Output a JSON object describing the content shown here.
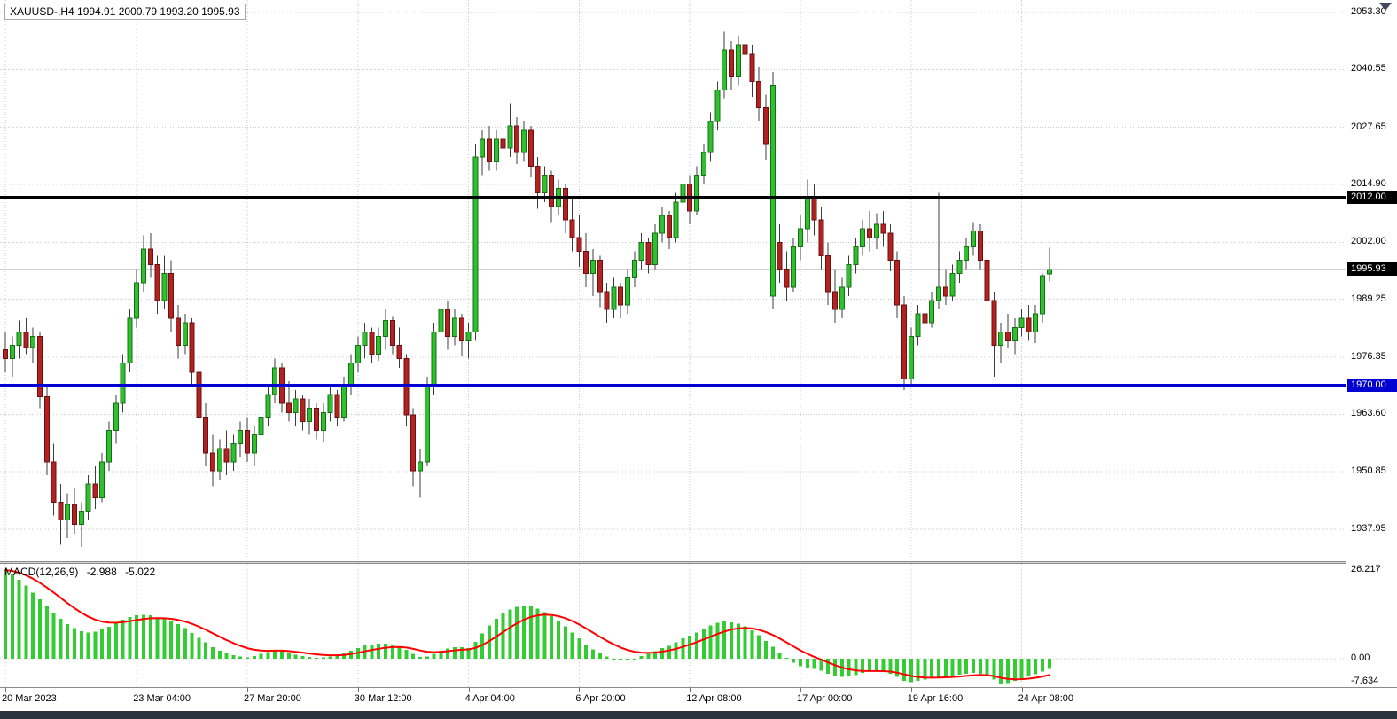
{
  "window": {
    "title": "XAUUSD-,H4",
    "symbol_header": "XAUUSD-,H4  1994.91 2000.79 1993.20 1995.93"
  },
  "macd_label": {
    "name": "MACD(12,26,9)",
    "main_value": "-2.988",
    "signal_value": "-5.022"
  },
  "chart_data": {
    "type": "candlestick",
    "symbol": "XAUUSD-",
    "timeframe": "H4",
    "last_ohlc": {
      "open": 1994.91,
      "high": 2000.79,
      "low": 1993.2,
      "close": 1995.93
    },
    "price_axis": {
      "gridline_values": [
        2053.3,
        2040.55,
        2027.65,
        2014.9,
        2002.0,
        1989.25,
        1976.35,
        1963.6,
        1950.85,
        1937.95
      ],
      "max_visible": 2056.07,
      "min_visible": 1930.8
    },
    "levels": [
      {
        "value": 2012.0,
        "label": "2012.00",
        "color": "#000000",
        "width": 3
      },
      {
        "value": 1970.0,
        "label": "1970.00",
        "color": "#0000D0",
        "width": 4
      }
    ],
    "current_price": {
      "value": 1995.93,
      "label": "1995.93"
    },
    "time_axis": [
      {
        "label": "20 Mar 2023",
        "index": 0
      },
      {
        "label": "23 Mar 04:00",
        "index": 19
      },
      {
        "label": "27 Mar 20:00",
        "index": 35
      },
      {
        "label": "30 Mar 12:00",
        "index": 51
      },
      {
        "label": "4 Apr 04:00",
        "index": 67
      },
      {
        "label": "6 Apr 20:00",
        "index": 83
      },
      {
        "label": "12 Apr 08:00",
        "index": 99
      },
      {
        "label": "17 Apr 00:00",
        "index": 115
      },
      {
        "label": "19 Apr 16:00",
        "index": 131
      },
      {
        "label": "24 Apr 08:00",
        "index": 147
      }
    ],
    "candles": [
      [
        1978,
        1982,
        1973,
        1976
      ],
      [
        1976,
        1981,
        1972,
        1979
      ],
      [
        1979,
        1984.5,
        1976,
        1982
      ],
      [
        1982,
        1985,
        1977,
        1978.5
      ],
      [
        1978.5,
        1983,
        1975,
        1981
      ],
      [
        1981,
        1982,
        1965,
        1967.5
      ],
      [
        1967.5,
        1970,
        1950,
        1953
      ],
      [
        1953,
        1957,
        1941,
        1944
      ],
      [
        1944,
        1948,
        1934.5,
        1940
      ],
      [
        1940,
        1946,
        1936,
        1943.5
      ],
      [
        1943.5,
        1947,
        1937,
        1939
      ],
      [
        1939,
        1944,
        1934,
        1942
      ],
      [
        1942,
        1950,
        1940,
        1948
      ],
      [
        1948,
        1952,
        1942.5,
        1945
      ],
      [
        1945,
        1955,
        1944,
        1953
      ],
      [
        1953,
        1962,
        1951,
        1960
      ],
      [
        1960,
        1968,
        1957,
        1966
      ],
      [
        1966,
        1977,
        1964,
        1975
      ],
      [
        1975,
        1987,
        1973,
        1985
      ],
      [
        1985,
        1996,
        1983,
        1993
      ],
      [
        1993,
        2003.5,
        1991,
        2000.5
      ],
      [
        2000.5,
        2004,
        1994,
        1997
      ],
      [
        1997,
        1999,
        1986,
        1989
      ],
      [
        1989,
        1999,
        1987,
        1995
      ],
      [
        1995,
        1998,
        1982,
        1985
      ],
      [
        1985,
        1988,
        1976,
        1979
      ],
      [
        1979,
        1986,
        1977,
        1984
      ],
      [
        1984,
        1985,
        1970,
        1973
      ],
      [
        1973,
        1974.5,
        1960,
        1963
      ],
      [
        1963,
        1966,
        1952,
        1955
      ],
      [
        1955,
        1959,
        1947.5,
        1951
      ],
      [
        1951,
        1958,
        1949,
        1956
      ],
      [
        1956,
        1960,
        1950,
        1953
      ],
      [
        1953,
        1959,
        1951,
        1957
      ],
      [
        1957,
        1962,
        1954,
        1960
      ],
      [
        1960,
        1963,
        1953,
        1955
      ],
      [
        1955,
        1961,
        1952,
        1959
      ],
      [
        1959,
        1965,
        1956,
        1963
      ],
      [
        1963,
        1970,
        1961,
        1968
      ],
      [
        1968,
        1976,
        1966,
        1974
      ],
      [
        1974,
        1975,
        1964,
        1966
      ],
      [
        1966,
        1971,
        1962,
        1964
      ],
      [
        1964,
        1969,
        1961,
        1967
      ],
      [
        1967,
        1968,
        1960,
        1962
      ],
      [
        1962,
        1967,
        1959,
        1965
      ],
      [
        1965,
        1966,
        1958,
        1960
      ],
      [
        1960,
        1966,
        1957.5,
        1964
      ],
      [
        1964,
        1970,
        1962,
        1968
      ],
      [
        1968,
        1969,
        1961,
        1963
      ],
      [
        1963,
        1972,
        1962,
        1970
      ],
      [
        1970,
        1977,
        1968,
        1975
      ],
      [
        1975,
        1981,
        1973,
        1979
      ],
      [
        1979,
        1984,
        1976,
        1982
      ],
      [
        1982,
        1983,
        1975,
        1977
      ],
      [
        1977,
        1983,
        1975.5,
        1981
      ],
      [
        1981,
        1987,
        1978,
        1984.5
      ],
      [
        1984.5,
        1985.5,
        1977,
        1979
      ],
      [
        1979,
        1983,
        1974,
        1976
      ],
      [
        1976,
        1977,
        1961,
        1963.5
      ],
      [
        1963.5,
        1965,
        1947.5,
        1951
      ],
      [
        1951,
        1956,
        1945,
        1953
      ],
      [
        1953,
        1972,
        1952,
        1970
      ],
      [
        1970,
        1984,
        1968,
        1982
      ],
      [
        1982,
        1990,
        1980,
        1987
      ],
      [
        1987,
        1989,
        1978,
        1981
      ],
      [
        1981,
        1987,
        1979,
        1985
      ],
      [
        1985,
        1986,
        1976.5,
        1980
      ],
      [
        1980,
        1984,
        1976,
        1982
      ],
      [
        1982,
        2024,
        1980,
        2021
      ],
      [
        2021,
        2027,
        2017,
        2025
      ],
      [
        2025,
        2028,
        2018,
        2020
      ],
      [
        2020,
        2027,
        2018,
        2025
      ],
      [
        2025,
        2030,
        2021,
        2023
      ],
      [
        2023,
        2033,
        2021,
        2028
      ],
      [
        2028,
        2030,
        2019.5,
        2022
      ],
      [
        2022,
        2029,
        2020,
        2027
      ],
      [
        2027,
        2028,
        2016.5,
        2019
      ],
      [
        2019,
        2021,
        2009.5,
        2013
      ],
      [
        2013,
        2019,
        2011,
        2017
      ],
      [
        2017,
        2018,
        2006.5,
        2010
      ],
      [
        2010,
        2016,
        2008,
        2014
      ],
      [
        2014,
        2015,
        2004,
        2007
      ],
      [
        2007,
        2012,
        2000,
        2003
      ],
      [
        2003,
        2008,
        1996.5,
        2000
      ],
      [
        2000,
        2004,
        1992,
        1995
      ],
      [
        1995,
        2000.5,
        1990,
        1998
      ],
      [
        1998,
        1999,
        1987.5,
        1991
      ],
      [
        1991,
        1993,
        1984,
        1987
      ],
      [
        1987,
        1994,
        1985,
        1992
      ],
      [
        1992,
        1993,
        1985,
        1988
      ],
      [
        1988,
        1996,
        1986,
        1994
      ],
      [
        1994,
        2000,
        1992,
        1998
      ],
      [
        1998,
        2004,
        1996,
        2002
      ],
      [
        2002,
        2003,
        1995,
        1997
      ],
      [
        1997,
        2006,
        1996,
        2004
      ],
      [
        2004,
        2010,
        2002,
        2008
      ],
      [
        2008,
        2009,
        2000.5,
        2003
      ],
      [
        2003,
        2013,
        2002,
        2011
      ],
      [
        2011,
        2028,
        2009,
        2015
      ],
      [
        2015,
        2017,
        2006,
        2009
      ],
      [
        2009,
        2019,
        2008,
        2017
      ],
      [
        2017,
        2024,
        2015,
        2022
      ],
      [
        2022,
        2031,
        2020,
        2029
      ],
      [
        2029,
        2038,
        2027,
        2036
      ],
      [
        2036,
        2049,
        2034,
        2045
      ],
      [
        2045,
        2047,
        2036,
        2039
      ],
      [
        2039,
        2048,
        2037,
        2046
      ],
      [
        2046,
        2051,
        2041,
        2044
      ],
      [
        2044,
        2046,
        2034.5,
        2038
      ],
      [
        2038,
        2041,
        2029,
        2032
      ],
      [
        2032,
        2035,
        2020.5,
        2024
      ],
      [
        1990,
        2040,
        1987,
        2037
      ],
      [
        2002,
        2006,
        1993,
        1996
      ],
      [
        1996,
        2000,
        1989,
        1992
      ],
      [
        1992,
        2003,
        1991,
        2001
      ],
      [
        2001,
        2008,
        1998,
        2005
      ],
      [
        2005,
        2016,
        2002,
        2012
      ],
      [
        2012,
        2015,
        2003.5,
        2007
      ],
      [
        2007,
        2010,
        1996,
        1999
      ],
      [
        1999,
        2002,
        1988,
        1991
      ],
      [
        1991,
        1996,
        1984,
        1987
      ],
      [
        1987,
        1994,
        1985,
        1992
      ],
      [
        1992,
        1999,
        1990,
        1997
      ],
      [
        1997,
        2003,
        1995,
        2001
      ],
      [
        2001,
        2007,
        1999,
        2005
      ],
      [
        2005,
        2009,
        2000,
        2003
      ],
      [
        2003,
        2008.5,
        2000.5,
        2006
      ],
      [
        2006,
        2009,
        2001,
        2004
      ],
      [
        2004,
        2006,
        1995.5,
        1998
      ],
      [
        1998,
        2000,
        1985,
        1988
      ],
      [
        1988,
        1990,
        1969,
        1971.5
      ],
      [
        1971.5,
        1983,
        1970,
        1981
      ],
      [
        1981,
        1988,
        1979,
        1986
      ],
      [
        1986,
        1990,
        1982,
        1984
      ],
      [
        1984,
        1991,
        1983,
        1989
      ],
      [
        1989,
        2013,
        1987,
        1992
      ],
      [
        1992,
        1996,
        1988,
        1990
      ],
      [
        1990,
        1997,
        1989,
        1995
      ],
      [
        1995,
        2000,
        1993,
        1998
      ],
      [
        1998,
        2003,
        1996,
        2001
      ],
      [
        2001,
        2006.5,
        1999,
        2004.5
      ],
      [
        2004.5,
        2006,
        1996,
        1998
      ],
      [
        1998,
        2000,
        1986,
        1989
      ],
      [
        1989,
        1991,
        1972,
        1979
      ],
      [
        1979,
        1984,
        1975,
        1982
      ],
      [
        1982,
        1986,
        1978.5,
        1980
      ],
      [
        1980,
        1985,
        1977,
        1983
      ],
      [
        1983,
        1987,
        1981,
        1985
      ],
      [
        1985,
        1988,
        1980,
        1982
      ],
      [
        1982,
        1988,
        1979.5,
        1986
      ],
      [
        1986,
        1995,
        1984,
        1994.5
      ],
      [
        1994.91,
        2000.79,
        1993.2,
        1995.93
      ]
    ],
    "macd": {
      "title": "MACD(12,26,9)",
      "params": [
        12,
        26,
        9
      ],
      "main_value": -2.988,
      "signal_value": -5.022,
      "axis": [
        {
          "value": 26.217,
          "label": "26.217"
        },
        {
          "value": 0,
          "label": "0.00"
        },
        {
          "value": -7.634,
          "label": "-7.634"
        }
      ],
      "signal_ema_period": 9,
      "histogram": [
        26.217,
        25.0,
        23.4,
        21.6,
        19.6,
        17.6,
        15.6,
        13.6,
        11.8,
        10.2,
        9.0,
        8.2,
        7.8,
        8.0,
        8.6,
        9.5,
        10.5,
        11.5,
        12.3,
        12.8,
        13.0,
        12.8,
        12.2,
        11.8,
        11.2,
        10.2,
        9.0,
        7.6,
        6.2,
        4.8,
        3.4,
        2.4,
        1.6,
        1.0,
        0.6,
        0.4,
        0.8,
        1.4,
        2.0,
        2.6,
        2.4,
        1.8,
        1.2,
        0.8,
        0.5,
        0.3,
        0.4,
        0.7,
        1.0,
        1.6,
        2.4,
        3.2,
        3.9,
        4.2,
        4.4,
        4.5,
        4.2,
        3.6,
        2.6,
        1.4,
        0.5,
        0.6,
        1.4,
        2.4,
        3.0,
        3.4,
        3.4,
        3.2,
        5.0,
        7.5,
        9.8,
        11.8,
        13.4,
        14.6,
        15.4,
        15.8,
        15.6,
        14.8,
        13.8,
        12.6,
        11.2,
        9.6,
        7.8,
        6.0,
        4.2,
        2.8,
        1.6,
        0.6,
        0.0,
        -0.4,
        -0.4,
        0.0,
        0.8,
        1.4,
        2.2,
        3.2,
        3.8,
        4.8,
        6.0,
        6.8,
        7.8,
        8.8,
        9.8,
        10.6,
        11.0,
        10.8,
        10.4,
        9.6,
        8.4,
        7.0,
        5.2,
        3.6,
        1.8,
        0.2,
        -1.2,
        -2.2,
        -2.6,
        -3.0,
        -3.6,
        -4.4,
        -5.2,
        -5.4,
        -5.2,
        -4.8,
        -4.2,
        -3.8,
        -3.6,
        -3.8,
        -4.4,
        -5.4,
        -6.6,
        -7.0,
        -6.6,
        -6.2,
        -5.8,
        -5.5,
        -5.2,
        -5.0,
        -4.7,
        -4.4,
        -4.2,
        -4.4,
        -5.2,
        -6.2,
        -7.634,
        -7.2,
        -6.6,
        -6.0,
        -5.2,
        -4.6,
        -3.8,
        -2.988
      ]
    },
    "colors": {
      "bull": "#2FBF2F",
      "bull_border": "#157015",
      "bear": "#B22222",
      "bear_border": "#6E0F0F",
      "wick": "#3C3C3C",
      "macd_histogram": "#33CC33",
      "macd_signal": "#FF0000",
      "grid": "#C8C8DC",
      "current_price_line": "#A0A0A0",
      "badge_current_bg": "#000000",
      "axis_text": "#000000",
      "badge_text": "#FFFFFF"
    }
  }
}
